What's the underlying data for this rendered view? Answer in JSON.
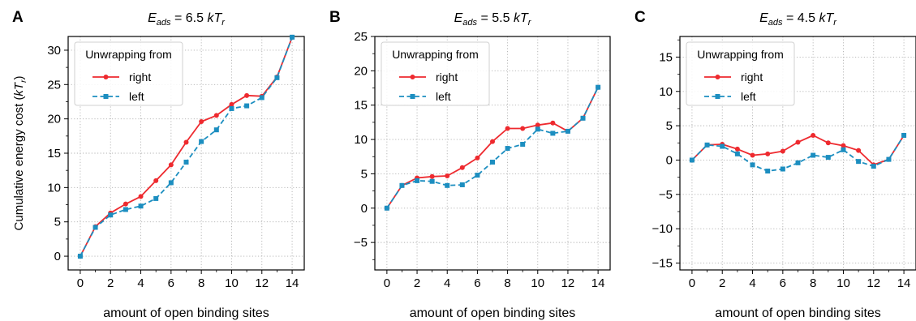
{
  "figure": {
    "ylabel_prefix": "Cumulative energy cost (",
    "ylabel_unit": "kT",
    "ylabel_sub": "r",
    "ylabel_suffix": ")",
    "colors": {
      "right": "#ee2a2f",
      "left": "#1c8ec0"
    }
  },
  "chart_data": [
    {
      "panel": "A",
      "type": "line",
      "title": {
        "sym": "E",
        "sub": "ads",
        "value": " = 6.5 ",
        "unit": "kT",
        "unit_sub": "r"
      },
      "xlabel": "amount of open binding sites",
      "xlim": [
        -0.8,
        14.8
      ],
      "ylim": [
        -2,
        32
      ],
      "xticks": [
        0,
        2,
        4,
        6,
        8,
        10,
        12,
        14
      ],
      "xminor": [
        1,
        3,
        5,
        7,
        9,
        11,
        13
      ],
      "yticks": [
        0,
        5,
        10,
        15,
        20,
        25,
        30
      ],
      "ytick_labels": [
        "0",
        "5",
        "10",
        "15",
        "20",
        "25",
        "30"
      ],
      "yminor": [
        2.5,
        7.5,
        12.5,
        17.5,
        22.5,
        27.5
      ],
      "grid": true,
      "legend": {
        "title": "Unwrapping from",
        "position": "top-left"
      },
      "x": [
        0,
        1,
        2,
        3,
        4,
        5,
        6,
        7,
        8,
        9,
        10,
        11,
        12,
        13,
        14
      ],
      "series": [
        {
          "name": "right",
          "key": "right",
          "values": [
            0,
            4.3,
            6.3,
            7.6,
            8.7,
            11.0,
            13.3,
            16.6,
            19.6,
            20.5,
            22.1,
            23.4,
            23.3,
            26.1,
            31.9
          ]
        },
        {
          "name": "left",
          "key": "left",
          "values": [
            0,
            4.2,
            6.0,
            6.8,
            7.3,
            8.4,
            10.7,
            13.7,
            16.7,
            18.4,
            21.5,
            21.9,
            23.1,
            26.0,
            31.9
          ]
        }
      ]
    },
    {
      "panel": "B",
      "type": "line",
      "title": {
        "sym": "E",
        "sub": "ads",
        "value": " = 5.5 ",
        "unit": "kT",
        "unit_sub": "r"
      },
      "xlabel": "amount of open binding sites",
      "xlim": [
        -0.8,
        14.8
      ],
      "ylim": [
        -9,
        25
      ],
      "xticks": [
        0,
        2,
        4,
        6,
        8,
        10,
        12,
        14
      ],
      "xminor": [
        1,
        3,
        5,
        7,
        9,
        11,
        13
      ],
      "yticks": [
        -5,
        0,
        5,
        10,
        15,
        20,
        25
      ],
      "ytick_labels": [
        "−5",
        "0",
        "5",
        "10",
        "15",
        "20",
        "25"
      ],
      "yminor": [
        -7.5,
        -2.5,
        2.5,
        7.5,
        12.5,
        17.5,
        22.5
      ],
      "grid": true,
      "legend": {
        "title": "Unwrapping from",
        "position": "top-left"
      },
      "x": [
        0,
        1,
        2,
        3,
        4,
        5,
        6,
        7,
        8,
        9,
        10,
        11,
        12,
        13,
        14
      ],
      "series": [
        {
          "name": "right",
          "key": "right",
          "values": [
            0,
            3.3,
            4.4,
            4.6,
            4.7,
            5.9,
            7.3,
            9.7,
            11.6,
            11.6,
            12.1,
            12.4,
            11.2,
            13.1,
            17.6
          ]
        },
        {
          "name": "left",
          "key": "left",
          "values": [
            0,
            3.3,
            4.0,
            3.9,
            3.3,
            3.4,
            4.8,
            6.7,
            8.7,
            9.3,
            11.5,
            10.9,
            11.2,
            13.1,
            17.6
          ]
        }
      ]
    },
    {
      "panel": "C",
      "type": "line",
      "title": {
        "sym": "E",
        "sub": "ads",
        "value": " = 4.5 ",
        "unit": "kT",
        "unit_sub": "r"
      },
      "xlabel": "amount of open binding sites",
      "xlim": [
        -0.8,
        14.8
      ],
      "ylim": [
        -16,
        18
      ],
      "xticks": [
        0,
        2,
        4,
        6,
        8,
        10,
        12,
        14
      ],
      "xminor": [
        1,
        3,
        5,
        7,
        9,
        11,
        13
      ],
      "yticks": [
        -15,
        -10,
        -5,
        0,
        5,
        10,
        15
      ],
      "ytick_labels": [
        "−15",
        "−10",
        "−5",
        "0",
        "5",
        "10",
        "15"
      ],
      "yminor": [
        -12.5,
        -7.5,
        -2.5,
        2.5,
        7.5,
        12.5,
        17.5
      ],
      "grid": true,
      "legend": {
        "title": "Unwrapping from",
        "position": "top-left"
      },
      "x": [
        0,
        1,
        2,
        3,
        4,
        5,
        6,
        7,
        8,
        9,
        10,
        11,
        12,
        13,
        14
      ],
      "series": [
        {
          "name": "right",
          "key": "right",
          "values": [
            0,
            2.2,
            2.3,
            1.6,
            0.7,
            0.9,
            1.3,
            2.6,
            3.6,
            2.5,
            2.1,
            1.4,
            -0.7,
            0.1,
            3.6
          ]
        },
        {
          "name": "left",
          "key": "left",
          "values": [
            0,
            2.2,
            2.0,
            0.9,
            -0.7,
            -1.6,
            -1.3,
            -0.4,
            0.7,
            0.4,
            1.5,
            -0.2,
            -0.9,
            0.1,
            3.6
          ]
        }
      ]
    }
  ]
}
